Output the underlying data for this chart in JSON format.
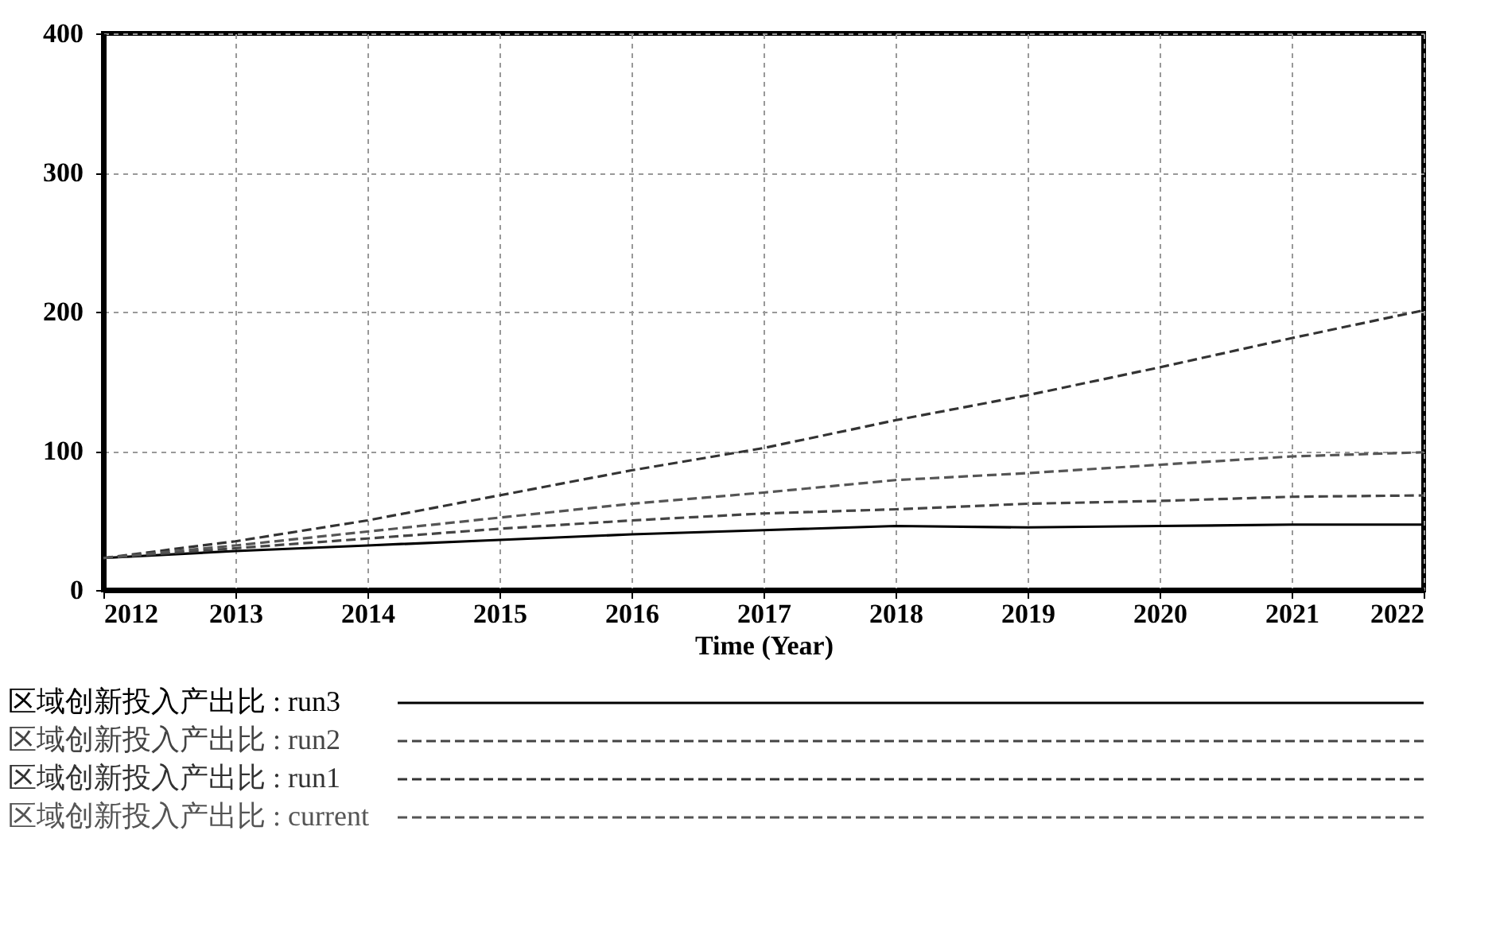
{
  "chart_data": {
    "type": "line",
    "xlabel": "Time (Year)",
    "x": [
      2012,
      2013,
      2014,
      2015,
      2016,
      2017,
      2018,
      2019,
      2020,
      2021,
      2022
    ],
    "xlim": [
      2012,
      2022
    ],
    "xticks": [
      2012,
      2013,
      2014,
      2015,
      2016,
      2017,
      2018,
      2019,
      2020,
      2021,
      2022
    ],
    "ylim": [
      0,
      400
    ],
    "yticks": [
      0,
      100,
      200,
      300,
      400
    ],
    "grid": true,
    "legend": "bottom",
    "series": [
      {
        "name": "区域创新投入产出比 : run3",
        "color": "#000000",
        "line_style": "solid",
        "values": [
          23,
          28,
          32,
          36,
          40,
          43,
          46,
          45,
          46,
          47,
          47
        ]
      },
      {
        "name": "区域创新投入产出比 : run2",
        "color": "#444444",
        "line_style": "dashed",
        "values": [
          23,
          30,
          37,
          44,
          50,
          55,
          58,
          62,
          64,
          67,
          68
        ]
      },
      {
        "name": "区域创新投入产出比 : run1",
        "color": "#333333",
        "line_style": "dashed",
        "values": [
          23,
          35,
          50,
          68,
          86,
          102,
          122,
          140,
          160,
          181,
          201
        ]
      },
      {
        "name": "区域创新投入产出比 : current",
        "color": "#555555",
        "line_style": "dashed",
        "values": [
          23,
          32,
          42,
          52,
          62,
          70,
          79,
          84,
          90,
          96,
          99
        ]
      }
    ]
  }
}
